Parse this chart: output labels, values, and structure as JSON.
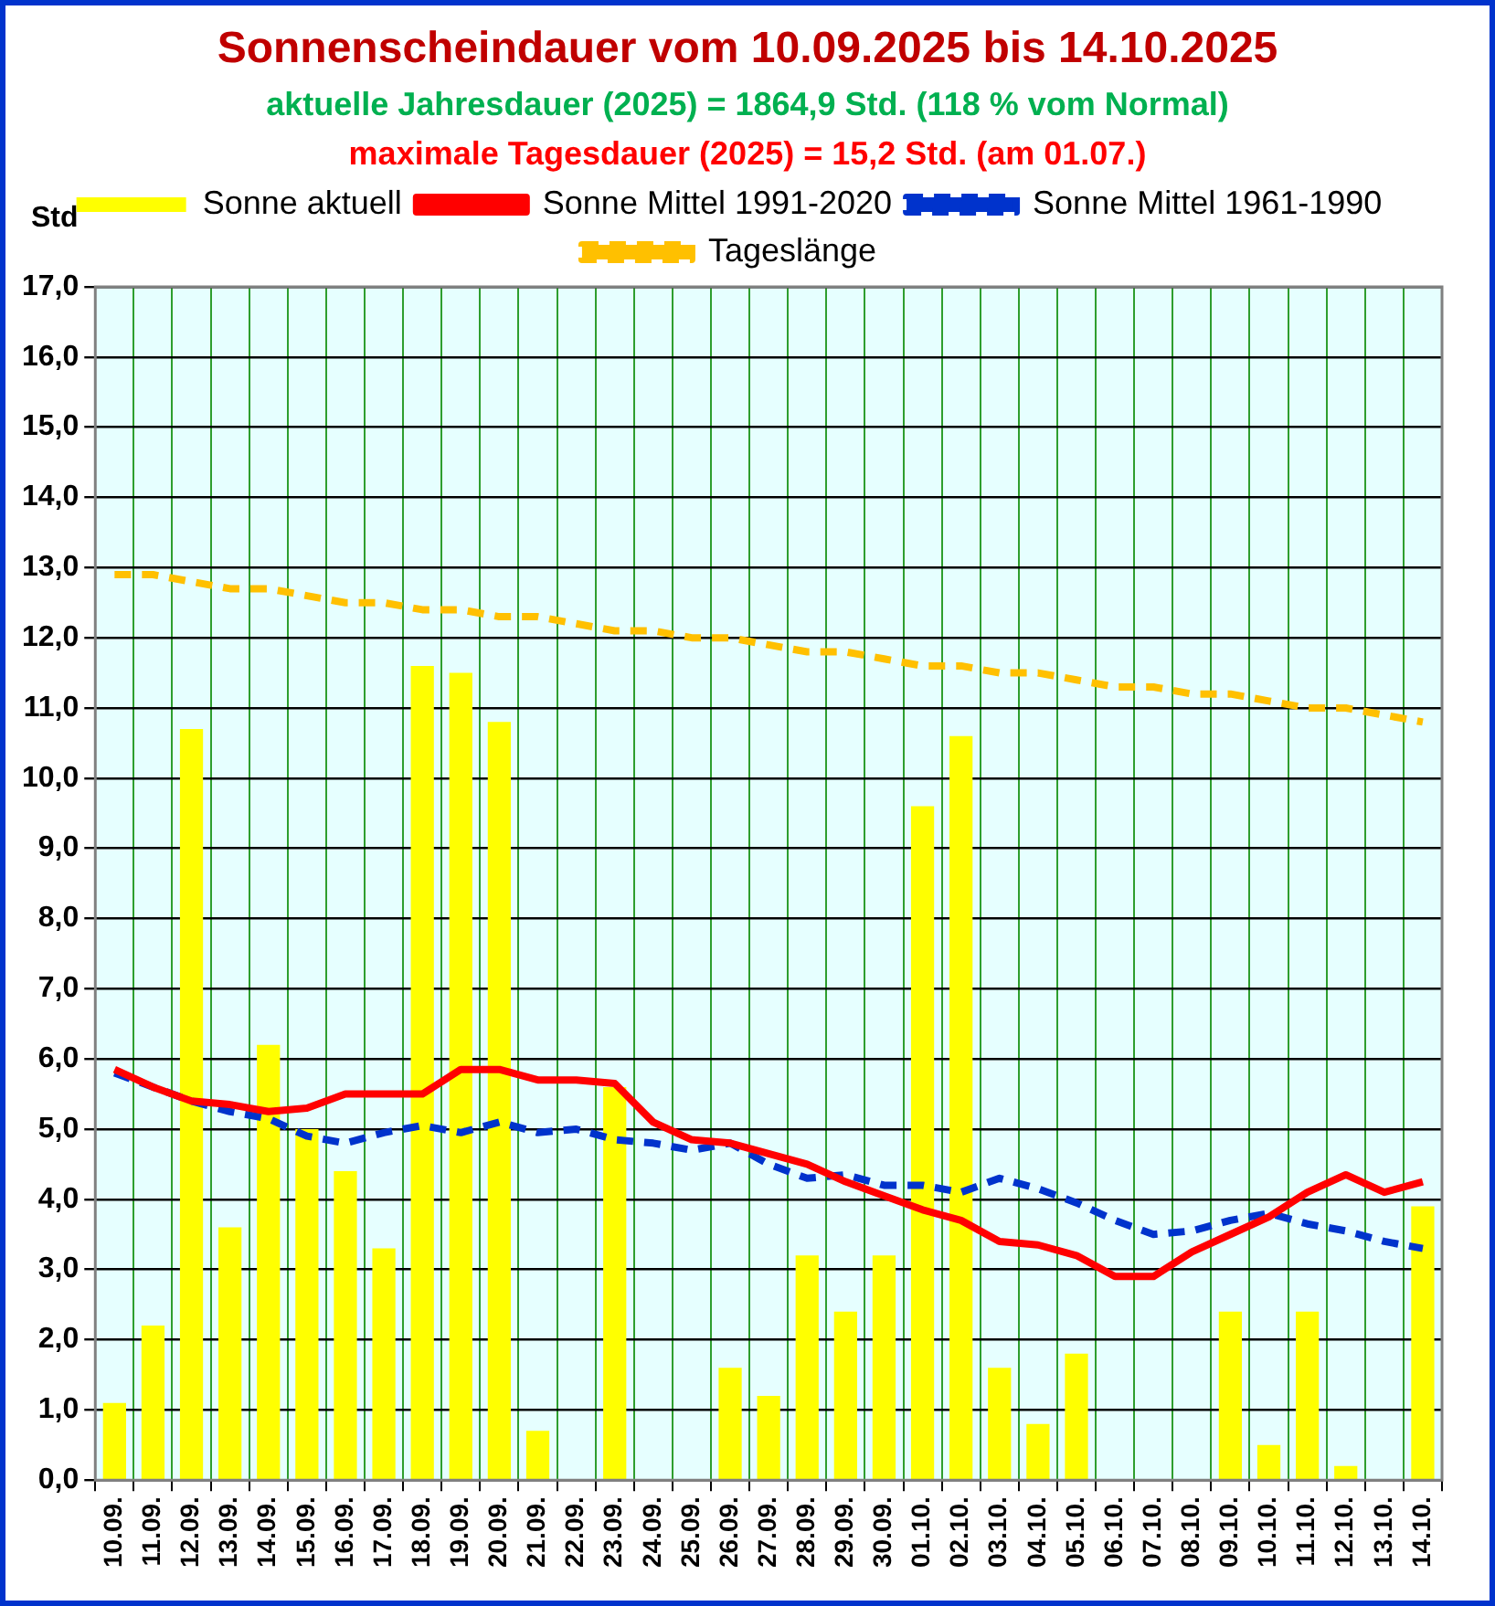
{
  "chart_data": {
    "type": "bar",
    "title": "Sonnenscheindauer vom 10.09.2025 bis 14.10.2025",
    "subtitle": "aktuelle Jahresdauer (2025) = 1864,9 Std. (118 % vom Normal)",
    "annotations": [
      "maximale Tagesdauer (2025) = 15,2 Std. (am 01.07.)"
    ],
    "ylabel": "Std",
    "categories": [
      "10.09.",
      "11.09.",
      "12.09.",
      "13.09.",
      "14.09.",
      "15.09.",
      "16.09.",
      "17.09.",
      "18.09.",
      "19.09.",
      "20.09.",
      "21.09.",
      "22.09.",
      "23.09.",
      "24.09.",
      "25.09.",
      "26.09.",
      "27.09.",
      "28.09.",
      "29.09.",
      "30.09.",
      "01.10.",
      "02.10.",
      "03.10.",
      "04.10.",
      "05.10.",
      "06.10.",
      "07.10.",
      "08.10.",
      "09.10.",
      "10.10.",
      "11.10.",
      "12.10.",
      "13.10.",
      "14.10."
    ],
    "series": [
      {
        "name": "Sonne aktuell",
        "color": "#ffff00",
        "values": [
          1.1,
          2.2,
          10.7,
          3.6,
          6.2,
          5.0,
          4.4,
          3.3,
          11.6,
          11.5,
          10.8,
          0.7,
          0.0,
          5.6,
          0,
          0,
          1.6,
          1.2,
          3.2,
          2.4,
          3.2,
          9.6,
          10.6,
          1.6,
          0.8,
          1.8,
          0,
          0,
          0,
          2.4,
          0.5,
          2.4,
          0.2,
          0,
          3.9
        ]
      },
      {
        "name": "Sonne Mittel 1991-2020",
        "type": "line",
        "color": "#ff0000",
        "line_style": "solid",
        "values": [
          5.85,
          5.6,
          5.4,
          5.35,
          5.25,
          5.3,
          5.5,
          5.5,
          5.5,
          5.85,
          5.85,
          5.7,
          5.7,
          5.65,
          5.1,
          4.85,
          4.8,
          4.65,
          4.5,
          4.25,
          4.05,
          3.85,
          3.7,
          3.4,
          3.35,
          3.2,
          2.9,
          2.9,
          3.25,
          3.5,
          3.75,
          4.1,
          4.35,
          4.1,
          4.25
        ]
      },
      {
        "name": "Sonne Mittel 1961-1990",
        "type": "line",
        "color": "#0033cc",
        "line_style": "dashed",
        "values": [
          5.8,
          5.6,
          5.4,
          5.25,
          5.15,
          4.9,
          4.8,
          4.95,
          5.05,
          4.95,
          5.1,
          4.95,
          5.0,
          4.85,
          4.8,
          4.7,
          4.8,
          4.5,
          4.3,
          4.35,
          4.2,
          4.2,
          4.1,
          4.3,
          4.15,
          3.95,
          3.7,
          3.5,
          3.55,
          3.7,
          3.8,
          3.65,
          3.55,
          3.4,
          3.3
        ]
      },
      {
        "name": "Tageslänge",
        "type": "line",
        "color": "#ffc000",
        "line_style": "dashed",
        "values": [
          12.9,
          12.9,
          12.8,
          12.7,
          12.7,
          12.6,
          12.5,
          12.5,
          12.4,
          12.4,
          12.3,
          12.3,
          12.2,
          12.1,
          12.1,
          12.0,
          12.0,
          11.9,
          11.8,
          11.8,
          11.7,
          11.6,
          11.6,
          11.5,
          11.5,
          11.4,
          11.3,
          11.3,
          11.2,
          11.2,
          11.1,
          11.0,
          11.0,
          10.9,
          10.8
        ]
      }
    ],
    "ylim": [
      0,
      17
    ],
    "yticks": [
      {
        "value": 0,
        "label": "0,0"
      },
      {
        "value": 1,
        "label": "1,0"
      },
      {
        "value": 2,
        "label": "2,0"
      },
      {
        "value": 3,
        "label": "3,0"
      },
      {
        "value": 4,
        "label": "4,0"
      },
      {
        "value": 5,
        "label": "5,0"
      },
      {
        "value": 6,
        "label": "6,0"
      },
      {
        "value": 7,
        "label": "7,0"
      },
      {
        "value": 8,
        "label": "8,0"
      },
      {
        "value": 9,
        "label": "9,0"
      },
      {
        "value": 10,
        "label": "10,0"
      },
      {
        "value": 11,
        "label": "11,0"
      },
      {
        "value": 12,
        "label": "12,0"
      },
      {
        "value": 13,
        "label": "13,0"
      },
      {
        "value": 14,
        "label": "14,0"
      },
      {
        "value": 15,
        "label": "15,0"
      },
      {
        "value": 16,
        "label": "16,0"
      },
      {
        "value": 17,
        "label": "17,0"
      }
    ],
    "grid": true,
    "legend": "top",
    "marker": "none"
  }
}
